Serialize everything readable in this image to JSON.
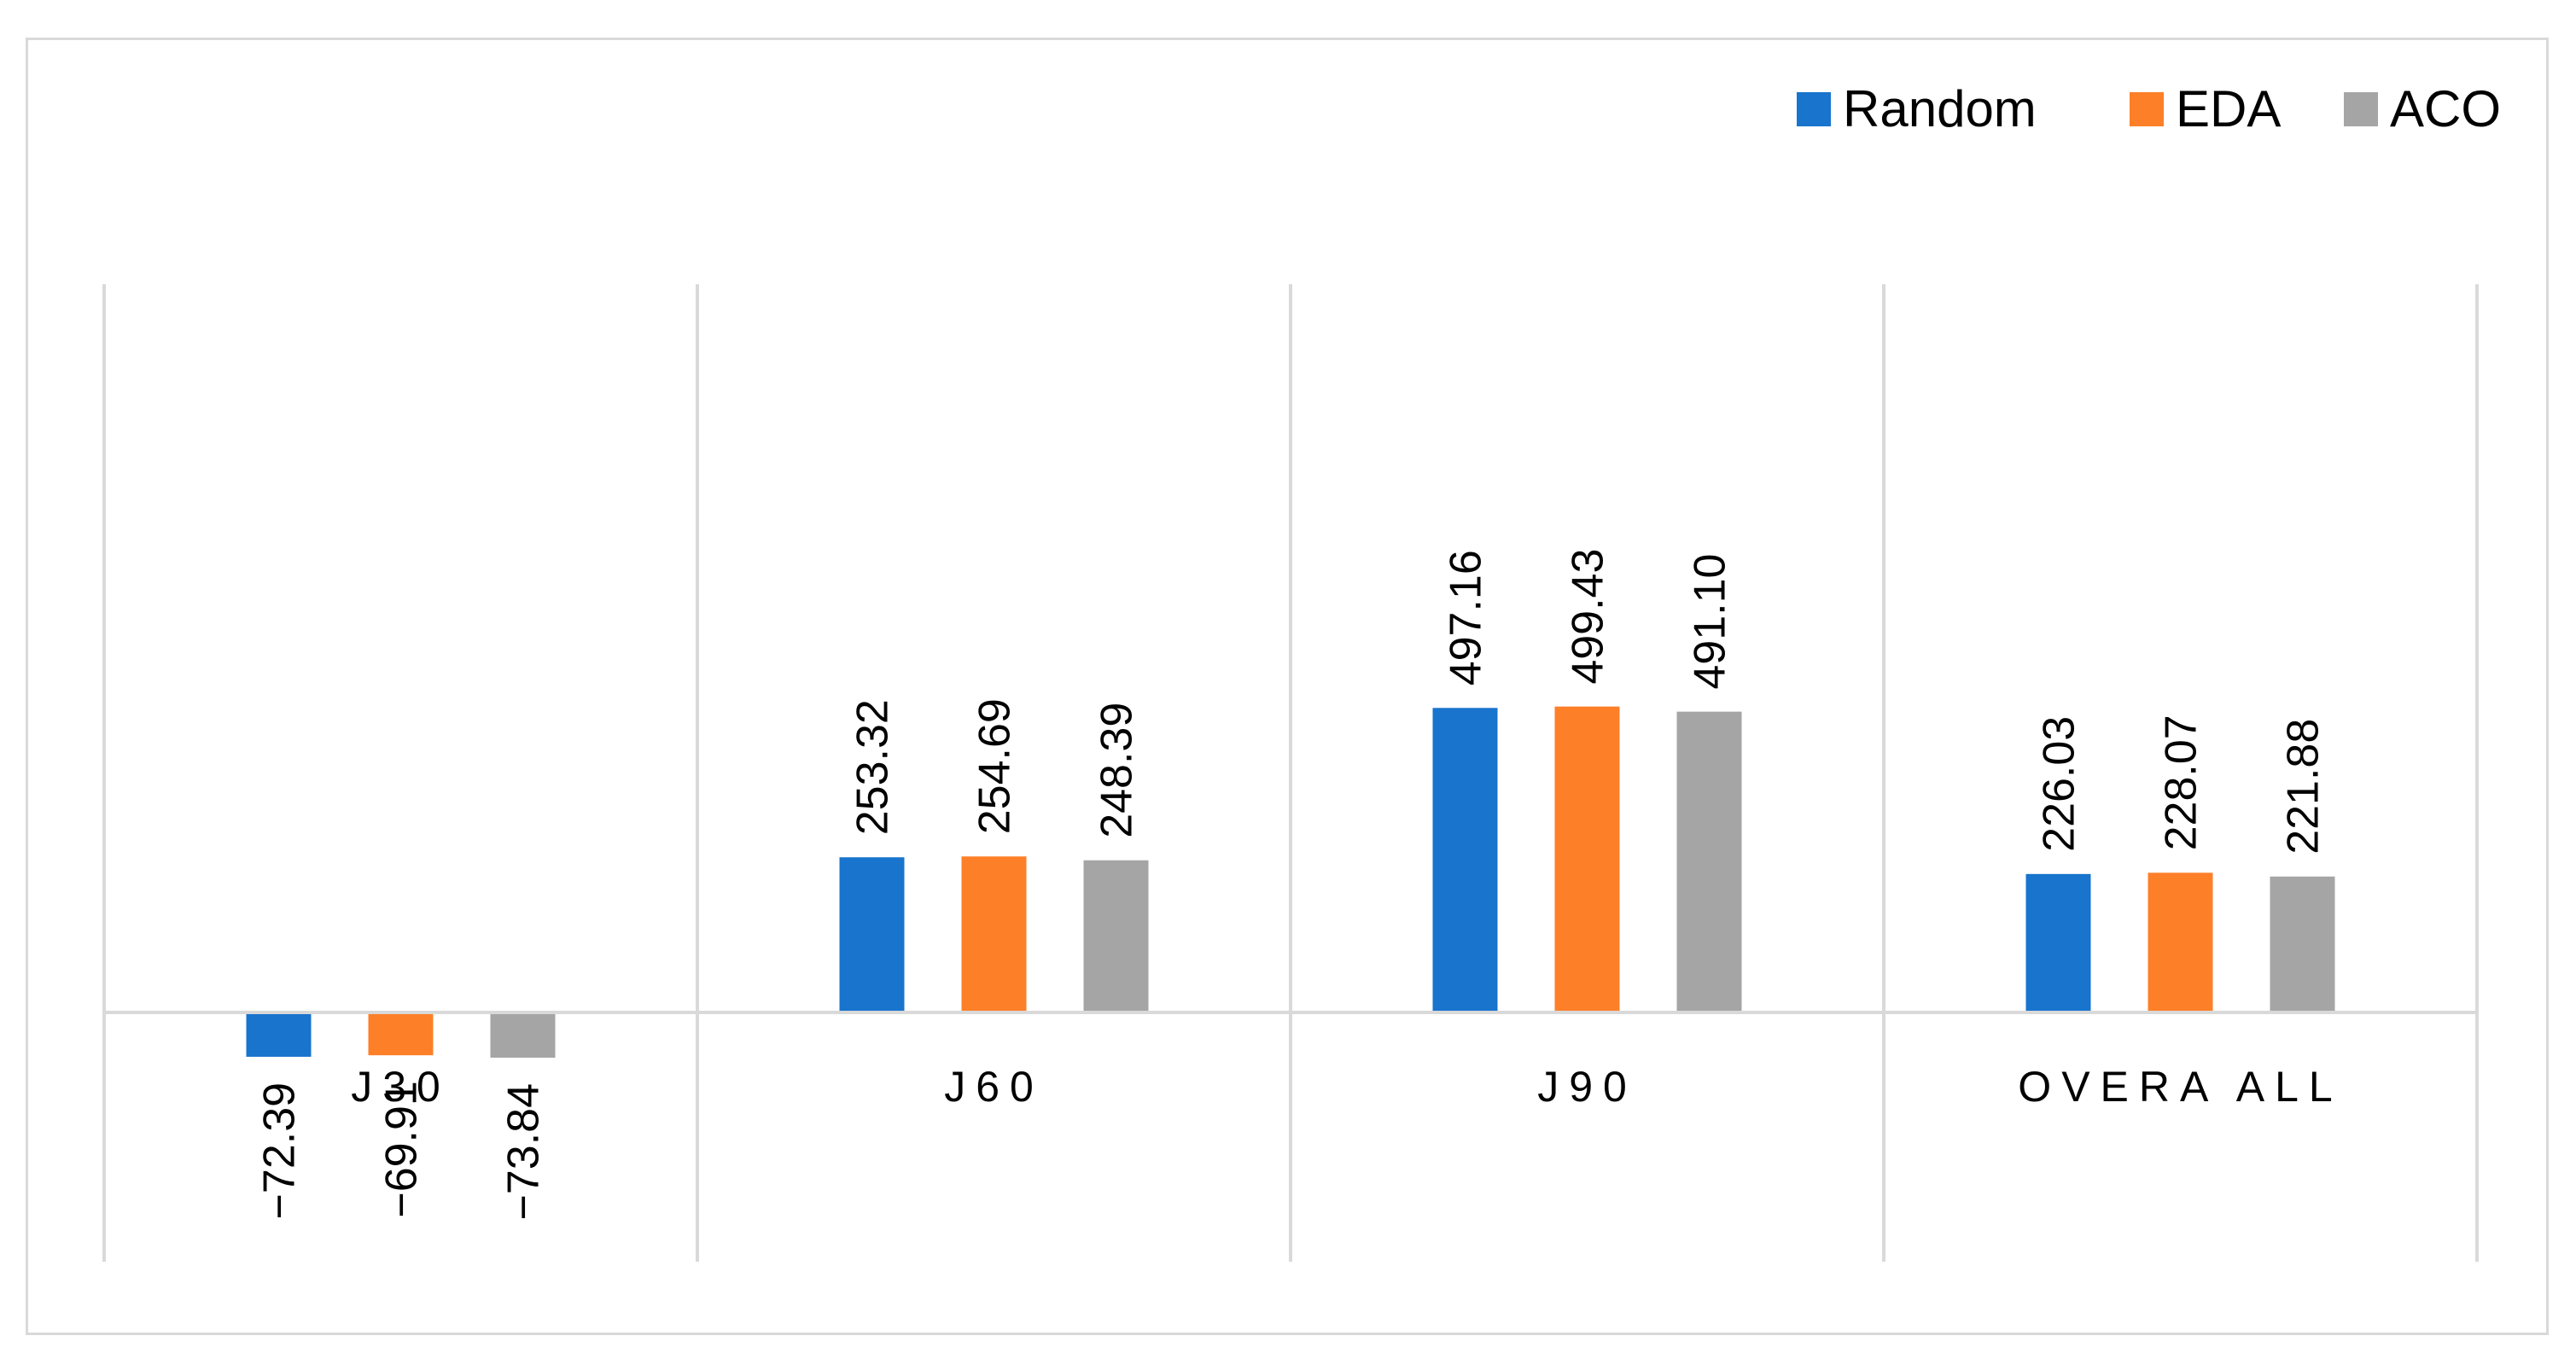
{
  "chart_data": {
    "type": "bar",
    "title": "",
    "xlabel": "",
    "ylabel": "",
    "categories": [
      "J30",
      "J60",
      "J90",
      "OVERA ALL"
    ],
    "series": [
      {
        "name": "Random",
        "color": "#1874cd",
        "values": [
          -72.39,
          253.32,
          497.16,
          226.03
        ],
        "labels": [
          "−72.39",
          "253.32",
          "497.16",
          "226.03"
        ]
      },
      {
        "name": "EDA",
        "color": "#fd7f28",
        "values": [
          -69.91,
          254.69,
          499.43,
          228.07
        ],
        "labels": [
          "−69.91",
          "254.69",
          "499.43",
          "228.07"
        ]
      },
      {
        "name": "ACO",
        "color": "#a5a5a5",
        "values": [
          -73.84,
          248.39,
          491.1,
          221.88
        ],
        "labels": [
          "−73.84",
          "248.39",
          "491.10",
          "221.88"
        ]
      }
    ],
    "ylim": [
      -200,
      600
    ],
    "grid": "vertical category separators",
    "legend_position": "top-right"
  }
}
